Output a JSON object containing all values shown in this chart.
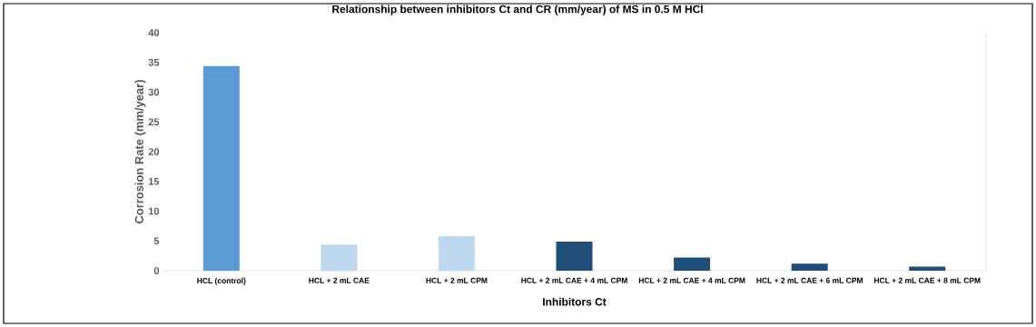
{
  "chart_data": {
    "type": "bar",
    "title": "Relationship between inhibitors Ct and CR (mm/year) of MS in 0.5 M HCl",
    "xlabel": "Inhibitors Ct",
    "ylabel": "Corrosion Rate (mm/year)",
    "categories": [
      "HCL (control)",
      "HCL + 2 mL CAE",
      "HCL + 2 mL CPM",
      "HCL + 2 mL CAE + 4 mL CPM",
      "HCL + 2 mL CAE + 4 mL CPM",
      "HCL + 2 mL CAE + 6 mL CPM",
      "HCL + 2 mL CAE + 8 mL CPM"
    ],
    "values": [
      34.4,
      4.4,
      5.8,
      4.9,
      2.2,
      1.2,
      0.7
    ],
    "colors": [
      "#5b9bd5",
      "#bdd7ee",
      "#bdd7ee",
      "#1f4e79",
      "#1f4e79",
      "#1f4e79",
      "#1f4e79"
    ],
    "ylim": [
      0,
      40
    ],
    "yticks": [
      0,
      5,
      10,
      15,
      20,
      25,
      30,
      35,
      40
    ]
  }
}
